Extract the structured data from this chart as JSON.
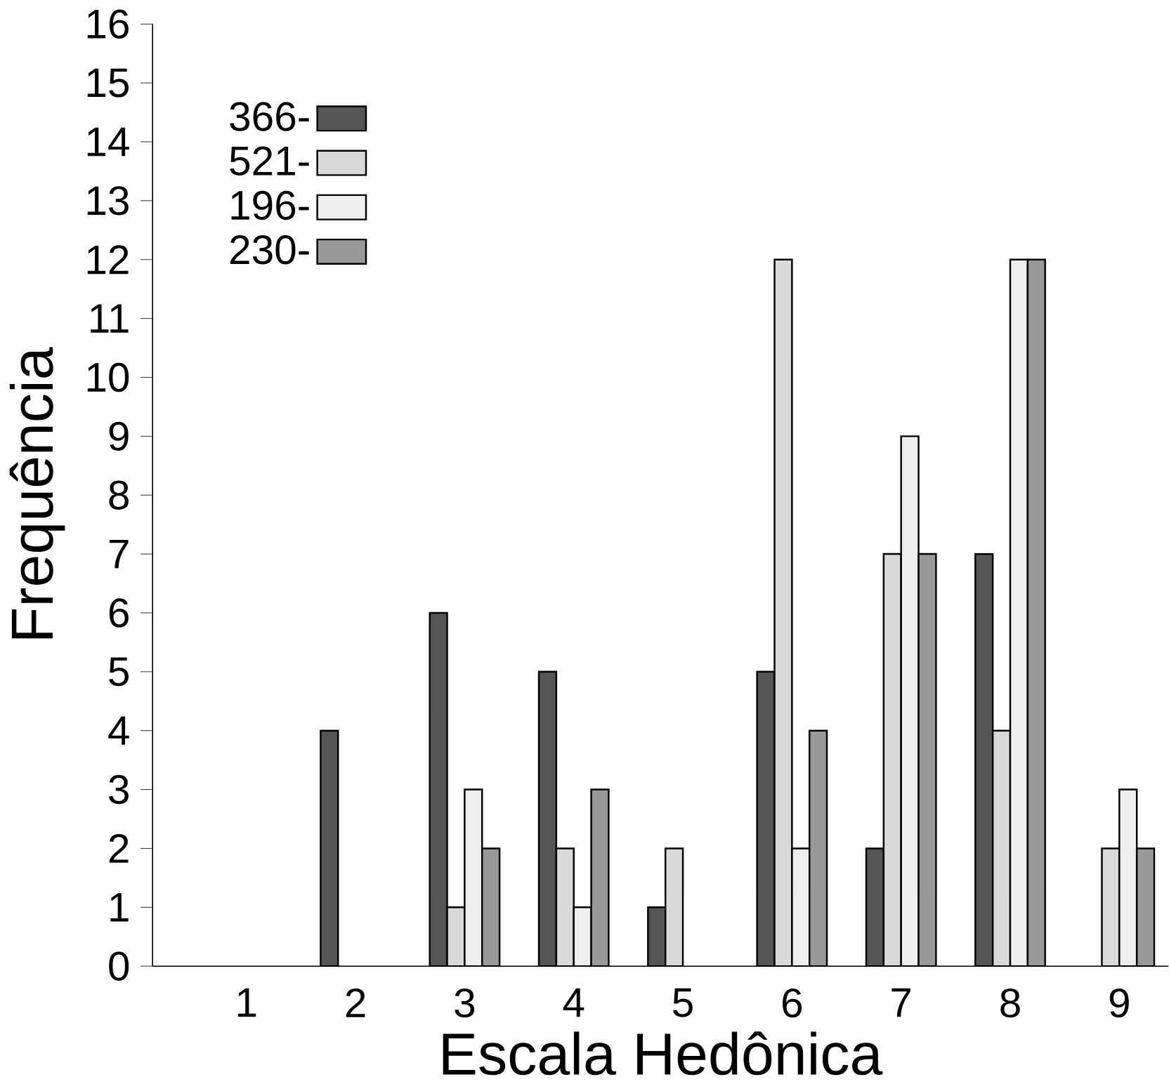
{
  "chart_data": {
    "type": "bar",
    "xlabel": "Escala  Hedônica",
    "ylabel": "Frequência",
    "categories": [
      "1",
      "2",
      "3",
      "4",
      "5",
      "6",
      "7",
      "8",
      "9"
    ],
    "series": [
      {
        "name": "366-",
        "color": "#555555",
        "values": [
          null,
          4,
          6,
          5,
          1,
          5,
          2,
          7,
          null
        ]
      },
      {
        "name": "521-",
        "color": "#d9d9d9",
        "values": [
          null,
          null,
          1,
          2,
          2,
          12,
          7,
          4,
          2
        ]
      },
      {
        "name": "196-",
        "color": "#eeeeee",
        "values": [
          null,
          null,
          3,
          1,
          null,
          2,
          9,
          12,
          3
        ]
      },
      {
        "name": "230-",
        "color": "#999999",
        "values": [
          null,
          null,
          2,
          3,
          null,
          4,
          7,
          12,
          2
        ]
      }
    ],
    "ylim": [
      0,
      16
    ],
    "yticks": [
      0,
      1,
      2,
      3,
      4,
      5,
      6,
      7,
      8,
      9,
      10,
      11,
      12,
      13,
      14,
      15,
      16
    ],
    "legend": "top left"
  }
}
